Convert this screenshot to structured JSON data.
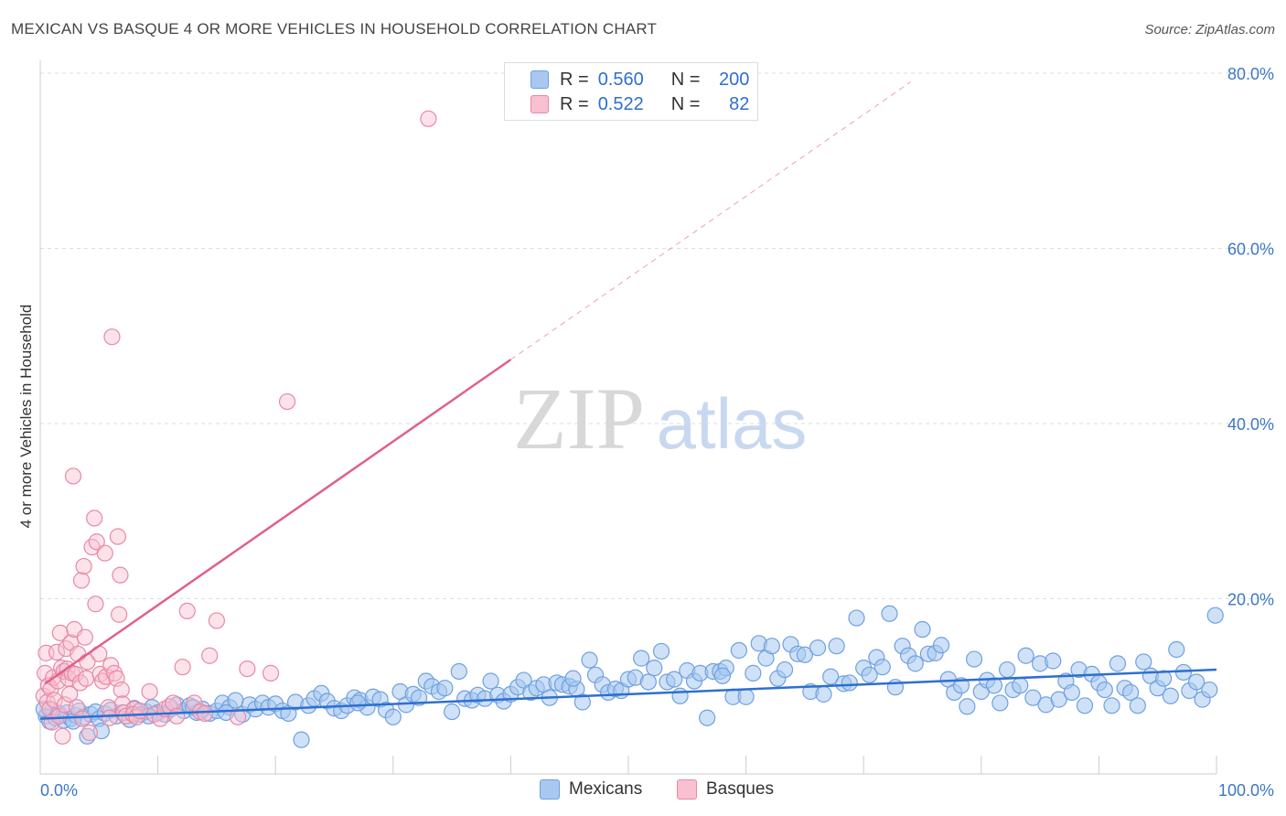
{
  "title": "MEXICAN VS BASQUE 4 OR MORE VEHICLES IN HOUSEHOLD CORRELATION CHART",
  "source": "Source: ZipAtlas.com",
  "watermark": {
    "zip": "ZIP",
    "atlas": "atlas"
  },
  "legend": {
    "rows": [
      {
        "r_label": "R =",
        "r_value": "0.560",
        "n_label": "N =",
        "n_value": "200",
        "color": "#a8c8f0",
        "border": "#6fa0e0"
      },
      {
        "r_label": "R =",
        "r_value": "0.522",
        "n_label": "N =",
        "n_value": "82",
        "color": "#f8c0d0",
        "border": "#e888a8"
      }
    ]
  },
  "bottom_legend": [
    {
      "label": "Mexicans",
      "color": "#a8c8f0",
      "border": "#6fa0e0"
    },
    {
      "label": "Basques",
      "color": "#f8c0d0",
      "border": "#e888a8"
    }
  ],
  "chart_data": {
    "type": "scatter",
    "title": "MEXICAN VS BASQUE 4 OR MORE VEHICLES IN HOUSEHOLD CORRELATION CHART",
    "xlabel": "",
    "ylabel": "4 or more Vehicles in Household",
    "xlim": [
      0,
      100
    ],
    "ylim": [
      0,
      80
    ],
    "x_tick_labels": [
      "0.0%",
      "100.0%"
    ],
    "y_ticks": [
      20,
      40,
      60,
      80
    ],
    "y_tick_labels": [
      "20.0%",
      "40.0%",
      "60.0%",
      "80.0%"
    ],
    "colors": {
      "mexicans": "#6fa0e0",
      "mexicans_fill": "#a8c8f0",
      "mexicans_line": "#2e6fd0",
      "basques": "#e888a8",
      "basques_fill": "#f8c0d0",
      "basques_line": "#e0608a"
    },
    "series": [
      {
        "name": "Mexicans",
        "trend": {
          "x": [
            0,
            100
          ],
          "y": [
            6.3,
            11.9
          ]
        },
        "points": [
          [
            0.5,
            6.6
          ],
          [
            0.8,
            6.0
          ],
          [
            1.0,
            7.3
          ],
          [
            1.3,
            6.4
          ],
          [
            1.6,
            6.9
          ],
          [
            2.0,
            6.1
          ],
          [
            2.3,
            7.0
          ],
          [
            2.6,
            6.3
          ],
          [
            3.0,
            6.7
          ],
          [
            3.3,
            7.2
          ],
          [
            3.7,
            6.5
          ],
          [
            4.0,
            4.3
          ],
          [
            4.3,
            6.8
          ],
          [
            4.7,
            7.1
          ],
          [
            5.0,
            6.3
          ],
          [
            5.5,
            6.9
          ],
          [
            6.0,
            7.3
          ],
          [
            6.5,
            6.6
          ],
          [
            7.0,
            7.0
          ],
          [
            7.6,
            6.2
          ],
          [
            8.0,
            7.5
          ],
          [
            8.5,
            6.8
          ],
          [
            9.0,
            7.1
          ],
          [
            9.5,
            7.6
          ],
          [
            10.0,
            7.0
          ],
          [
            10.6,
            6.8
          ],
          [
            11.1,
            7.4
          ],
          [
            11.6,
            7.9
          ],
          [
            12.2,
            7.2
          ],
          [
            12.7,
            7.8
          ],
          [
            13.3,
            7.0
          ],
          [
            13.8,
            7.4
          ],
          [
            14.4,
            6.9
          ],
          [
            15.0,
            7.2
          ],
          [
            15.5,
            8.1
          ],
          [
            16.1,
            7.6
          ],
          [
            16.6,
            8.4
          ],
          [
            17.2,
            6.8
          ],
          [
            17.8,
            7.9
          ],
          [
            18.3,
            7.4
          ],
          [
            18.9,
            8.1
          ],
          [
            19.4,
            7.6
          ],
          [
            20.0,
            8.0
          ],
          [
            20.6,
            7.2
          ],
          [
            21.1,
            6.9
          ],
          [
            21.7,
            8.2
          ],
          [
            22.2,
            3.9
          ],
          [
            22.8,
            7.8
          ],
          [
            23.3,
            8.6
          ],
          [
            23.9,
            9.2
          ],
          [
            24.4,
            8.3
          ],
          [
            25.0,
            7.5
          ],
          [
            25.6,
            7.2
          ],
          [
            26.1,
            7.8
          ],
          [
            26.7,
            8.7
          ],
          [
            27.2,
            8.4
          ],
          [
            27.8,
            7.6
          ],
          [
            28.3,
            8.8
          ],
          [
            28.9,
            8.5
          ],
          [
            29.4,
            7.3
          ],
          [
            30.0,
            6.5
          ],
          [
            30.6,
            9.4
          ],
          [
            31.1,
            7.9
          ],
          [
            31.7,
            9.1
          ],
          [
            32.2,
            8.7
          ],
          [
            32.8,
            10.6
          ],
          [
            33.3,
            10.0
          ],
          [
            33.9,
            9.4
          ],
          [
            34.4,
            9.8
          ],
          [
            35.0,
            7.1
          ],
          [
            35.6,
            11.7
          ],
          [
            36.1,
            8.6
          ],
          [
            36.7,
            8.4
          ],
          [
            37.2,
            9.0
          ],
          [
            37.8,
            8.6
          ],
          [
            38.3,
            10.6
          ],
          [
            38.9,
            9.0
          ],
          [
            39.4,
            8.3
          ],
          [
            40.0,
            9.1
          ],
          [
            40.6,
            9.9
          ],
          [
            41.1,
            10.7
          ],
          [
            41.7,
            9.3
          ],
          [
            42.2,
            9.8
          ],
          [
            42.8,
            10.2
          ],
          [
            43.3,
            8.7
          ],
          [
            43.9,
            10.4
          ],
          [
            44.4,
            10.2
          ],
          [
            45.0,
            10.0
          ],
          [
            45.6,
            9.7
          ],
          [
            46.1,
            8.2
          ],
          [
            46.7,
            13.0
          ],
          [
            47.2,
            11.3
          ],
          [
            47.8,
            10.2
          ],
          [
            48.3,
            9.3
          ],
          [
            48.9,
            9.7
          ],
          [
            49.4,
            9.5
          ],
          [
            50.0,
            10.8
          ],
          [
            50.6,
            11.0
          ],
          [
            51.1,
            13.2
          ],
          [
            51.7,
            10.5
          ],
          [
            52.2,
            12.1
          ],
          [
            52.8,
            14.0
          ],
          [
            53.3,
            10.5
          ],
          [
            53.9,
            10.8
          ],
          [
            54.4,
            8.9
          ],
          [
            55.0,
            11.8
          ],
          [
            55.6,
            10.6
          ],
          [
            56.1,
            11.5
          ],
          [
            56.7,
            6.4
          ],
          [
            57.2,
            11.7
          ],
          [
            57.8,
            11.7
          ],
          [
            58.3,
            12.1
          ],
          [
            58.9,
            8.8
          ],
          [
            59.4,
            14.1
          ],
          [
            60.0,
            8.8
          ],
          [
            60.6,
            11.5
          ],
          [
            61.1,
            14.9
          ],
          [
            61.7,
            13.2
          ],
          [
            62.2,
            14.6
          ],
          [
            62.7,
            10.9
          ],
          [
            63.3,
            11.9
          ],
          [
            63.8,
            14.8
          ],
          [
            64.4,
            13.7
          ],
          [
            65.0,
            13.6
          ],
          [
            65.5,
            9.4
          ],
          [
            66.1,
            14.4
          ],
          [
            66.6,
            9.1
          ],
          [
            67.2,
            11.1
          ],
          [
            67.7,
            14.6
          ],
          [
            68.3,
            10.3
          ],
          [
            68.8,
            10.4
          ],
          [
            69.4,
            17.8
          ],
          [
            70.0,
            12.1
          ],
          [
            70.5,
            11.3
          ],
          [
            71.1,
            13.3
          ],
          [
            71.6,
            12.2
          ],
          [
            72.2,
            18.3
          ],
          [
            72.7,
            9.9
          ],
          [
            73.3,
            14.6
          ],
          [
            73.8,
            13.5
          ],
          [
            74.4,
            12.6
          ],
          [
            75.0,
            16.5
          ],
          [
            75.5,
            13.7
          ],
          [
            76.1,
            13.8
          ],
          [
            76.6,
            14.7
          ],
          [
            77.2,
            10.8
          ],
          [
            77.7,
            9.3
          ],
          [
            78.3,
            10.1
          ],
          [
            78.8,
            7.7
          ],
          [
            79.4,
            13.1
          ],
          [
            80.0,
            9.4
          ],
          [
            80.5,
            10.7
          ],
          [
            81.1,
            10.1
          ],
          [
            81.6,
            8.1
          ],
          [
            82.2,
            11.9
          ],
          [
            82.7,
            9.6
          ],
          [
            83.3,
            10.1
          ],
          [
            83.8,
            13.5
          ],
          [
            84.4,
            8.7
          ],
          [
            85.0,
            12.6
          ],
          [
            85.5,
            7.9
          ],
          [
            86.1,
            12.9
          ],
          [
            86.6,
            8.5
          ],
          [
            87.2,
            10.6
          ],
          [
            87.7,
            9.3
          ],
          [
            88.3,
            11.9
          ],
          [
            88.8,
            7.8
          ],
          [
            89.4,
            11.4
          ],
          [
            90.0,
            10.4
          ],
          [
            90.5,
            9.6
          ],
          [
            91.1,
            7.8
          ],
          [
            91.6,
            12.6
          ],
          [
            92.2,
            9.8
          ],
          [
            92.7,
            9.3
          ],
          [
            93.3,
            7.8
          ],
          [
            93.8,
            12.8
          ],
          [
            94.4,
            11.2
          ],
          [
            95.0,
            9.8
          ],
          [
            95.5,
            10.9
          ],
          [
            96.1,
            8.9
          ],
          [
            96.6,
            14.2
          ],
          [
            97.2,
            11.6
          ],
          [
            97.7,
            9.5
          ],
          [
            98.3,
            10.5
          ],
          [
            98.8,
            8.5
          ],
          [
            99.4,
            9.6
          ],
          [
            99.9,
            18.1
          ],
          [
            0.3,
            7.4
          ],
          [
            2.8,
            6.0
          ],
          [
            5.2,
            4.9
          ],
          [
            9.2,
            6.6
          ],
          [
            13.0,
            7.6
          ],
          [
            15.8,
            7.0
          ],
          [
            27.0,
            8.1
          ],
          [
            45.3,
            10.9
          ],
          [
            58.0,
            11.2
          ]
        ]
      },
      {
        "name": "Basques",
        "trend": {
          "x": [
            0.4,
            40.0
          ],
          "y": [
            10.3,
            47.3
          ]
        },
        "trend_extension": {
          "x": [
            40.0,
            74.0
          ],
          "y": [
            47.3,
            79.0
          ]
        },
        "points": [
          [
            0.3,
            8.9
          ],
          [
            0.4,
            11.5
          ],
          [
            0.5,
            13.8
          ],
          [
            0.6,
            8.2
          ],
          [
            0.7,
            10.1
          ],
          [
            0.8,
            7.4
          ],
          [
            0.9,
            9.7
          ],
          [
            1.0,
            5.9
          ],
          [
            1.1,
            11.0
          ],
          [
            1.2,
            8.4
          ],
          [
            1.4,
            13.9
          ],
          [
            1.5,
            10.6
          ],
          [
            1.6,
            6.6
          ],
          [
            1.7,
            16.1
          ],
          [
            1.8,
            12.1
          ],
          [
            1.9,
            4.3
          ],
          [
            2.0,
            11.7
          ],
          [
            2.1,
            7.9
          ],
          [
            2.2,
            14.3
          ],
          [
            2.3,
            12.0
          ],
          [
            2.4,
            10.9
          ],
          [
            2.5,
            9.1
          ],
          [
            2.6,
            15.0
          ],
          [
            2.7,
            11.5
          ],
          [
            2.8,
            34.0
          ],
          [
            2.9,
            16.5
          ],
          [
            3.0,
            11.4
          ],
          [
            3.1,
            7.6
          ],
          [
            3.2,
            13.7
          ],
          [
            3.4,
            10.4
          ],
          [
            3.5,
            22.1
          ],
          [
            3.6,
            6.3
          ],
          [
            3.7,
            23.7
          ],
          [
            3.8,
            15.6
          ],
          [
            3.9,
            10.9
          ],
          [
            4.0,
            12.8
          ],
          [
            4.2,
            4.7
          ],
          [
            4.4,
            25.9
          ],
          [
            4.6,
            29.2
          ],
          [
            4.7,
            19.4
          ],
          [
            4.8,
            26.5
          ],
          [
            5.0,
            13.7
          ],
          [
            5.1,
            11.4
          ],
          [
            5.3,
            10.6
          ],
          [
            5.5,
            25.2
          ],
          [
            5.6,
            11.1
          ],
          [
            5.8,
            7.6
          ],
          [
            5.9,
            6.4
          ],
          [
            6.0,
            12.4
          ],
          [
            6.1,
            49.9
          ],
          [
            6.3,
            11.5
          ],
          [
            6.5,
            10.9
          ],
          [
            6.6,
            27.1
          ],
          [
            6.7,
            18.2
          ],
          [
            6.8,
            22.7
          ],
          [
            6.9,
            9.6
          ],
          [
            7.0,
            8.0
          ],
          [
            7.1,
            7.0
          ],
          [
            7.3,
            6.6
          ],
          [
            8.0,
            7.4
          ],
          [
            7.9,
            6.8
          ],
          [
            8.2,
            6.5
          ],
          [
            8.5,
            7.2
          ],
          [
            9.3,
            9.4
          ],
          [
            9.7,
            6.8
          ],
          [
            10.2,
            6.3
          ],
          [
            10.6,
            7.4
          ],
          [
            11.0,
            7.7
          ],
          [
            11.3,
            8.1
          ],
          [
            11.6,
            6.6
          ],
          [
            12.1,
            12.2
          ],
          [
            12.5,
            18.6
          ],
          [
            13.1,
            8.1
          ],
          [
            13.6,
            7.1
          ],
          [
            14.0,
            6.9
          ],
          [
            14.4,
            13.5
          ],
          [
            15.0,
            17.5
          ],
          [
            16.8,
            6.5
          ],
          [
            17.6,
            12.0
          ],
          [
            19.6,
            11.5
          ],
          [
            21.0,
            42.5
          ],
          [
            33.0,
            74.8
          ]
        ]
      }
    ]
  }
}
